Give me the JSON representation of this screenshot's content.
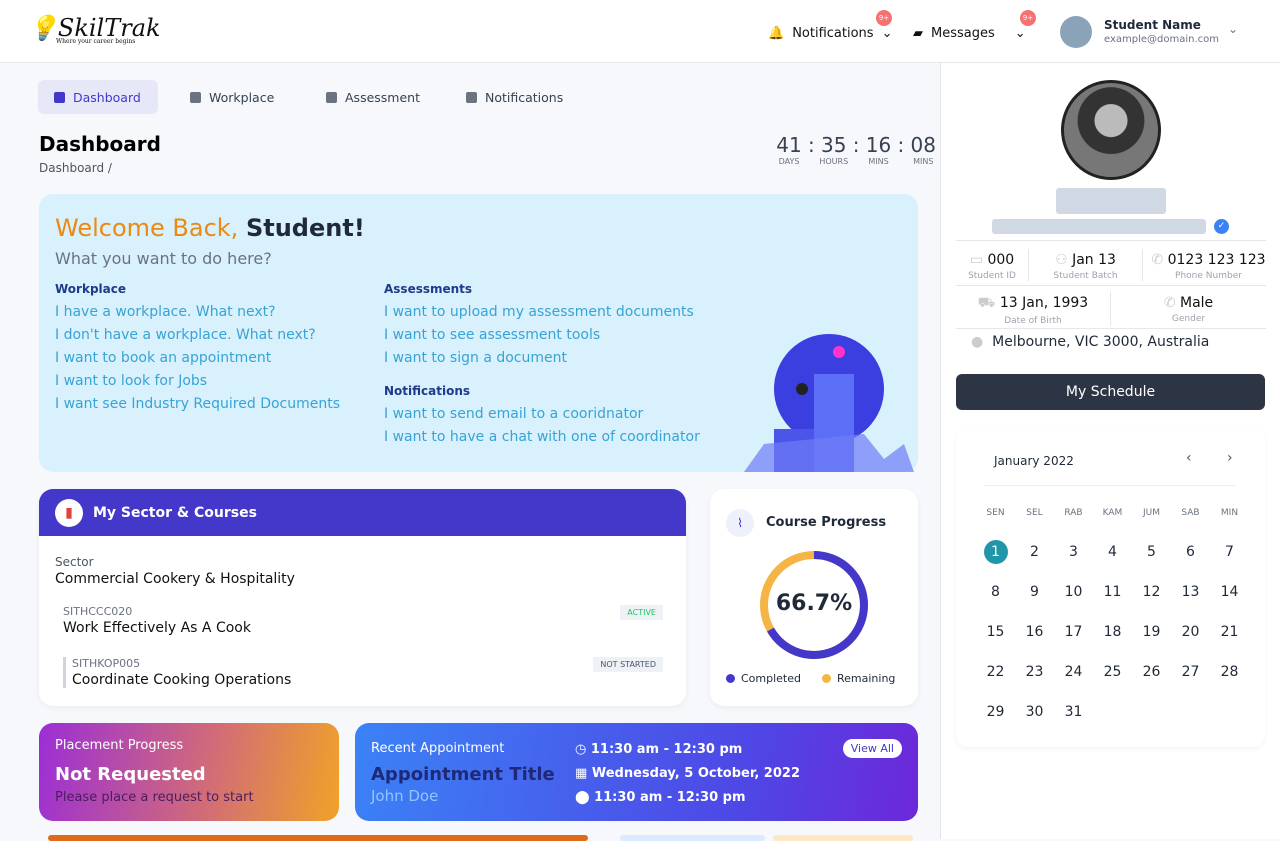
{
  "header": {
    "logo": "SkilTrak",
    "tagline": "Where your career begins",
    "notifications_label": "Notifications",
    "notifications_badge": "9+",
    "messages_label": "Messages",
    "messages_badge": "9+",
    "user_name": "Student Name",
    "user_email": "example@domain.com"
  },
  "tabs": [
    {
      "label": "Dashboard"
    },
    {
      "label": "Workplace"
    },
    {
      "label": "Assessment"
    },
    {
      "label": "Notifications"
    }
  ],
  "page": {
    "title": "Dashboard",
    "breadcrumb": "Dashboard /"
  },
  "timer": {
    "days": "41",
    "hours": "35",
    "mins": "16",
    "secs": "08",
    "days_label": "DAYS",
    "hours_label": "HOURS",
    "mins_label": "MINS",
    "secs_label": "MINS"
  },
  "welcome": {
    "greeting": "Welcome Back,",
    "name": "Student!",
    "subtitle": "What you want to do here?",
    "workplace": {
      "title": "Workplace",
      "links": [
        "I have a workplace. What next?",
        "I don't have a workplace. What next?",
        "I want to book an appointment",
        "I want to look for Jobs",
        "I want see Industry Required Documents"
      ]
    },
    "assessments": {
      "title": "Assessments",
      "links": [
        "I want to upload my assessment documents",
        "I want to see assessment tools",
        "I want to sign a document"
      ]
    },
    "notifications": {
      "title": "Notifications",
      "links": [
        "I want to send email to a cooridnator",
        "I want to have a chat with one of coordinator"
      ]
    }
  },
  "sector": {
    "title": "My Sector & Courses",
    "sector_label": "Sector",
    "sector_name": "Commercial Cookery & Hospitality",
    "courses": [
      {
        "code": "SITHCCC020",
        "name": "Work Effectively As A Cook",
        "status": "ACTIVE"
      },
      {
        "code": "SITHKOP005",
        "name": "Coordinate Cooking Operations",
        "status": "NOT STARTED"
      }
    ]
  },
  "progress": {
    "title": "Course Progress",
    "value": "66.7%",
    "percent": 66.7,
    "legend_completed": "Completed",
    "legend_remaining": "Remaining",
    "color_completed": "#4338ca",
    "color_remaining": "#f5b544"
  },
  "placement": {
    "label": "Placement Progress",
    "status": "Not Requested",
    "note": "Please place a request to start"
  },
  "appointment": {
    "label": "Recent Appointment",
    "title": "Appointment Title",
    "person": "John Doe",
    "time": "11:30 am - 12:30 pm",
    "date": "Wednesday, 5 October, 2022",
    "location": "11:30 am - 12:30 pm",
    "view_all": "View All"
  },
  "profile": {
    "student_id": "000",
    "student_id_label": "Student ID",
    "batch": "Jan 13",
    "batch_label": "Student Batch",
    "phone": "0123 123 123",
    "phone_label": "Phone Number",
    "dob": "13 Jan, 1993",
    "dob_label": "Date of Birth",
    "gender": "Male",
    "gender_label": "Gender",
    "address": "Melbourne, VIC 3000, Australia",
    "schedule_button": "My Schedule"
  },
  "calendar": {
    "month": "January 2022",
    "weekdays": [
      "SEN",
      "SEL",
      "RAB",
      "KAM",
      "JUM",
      "SAB",
      "MIN"
    ],
    "selected": 1
  }
}
